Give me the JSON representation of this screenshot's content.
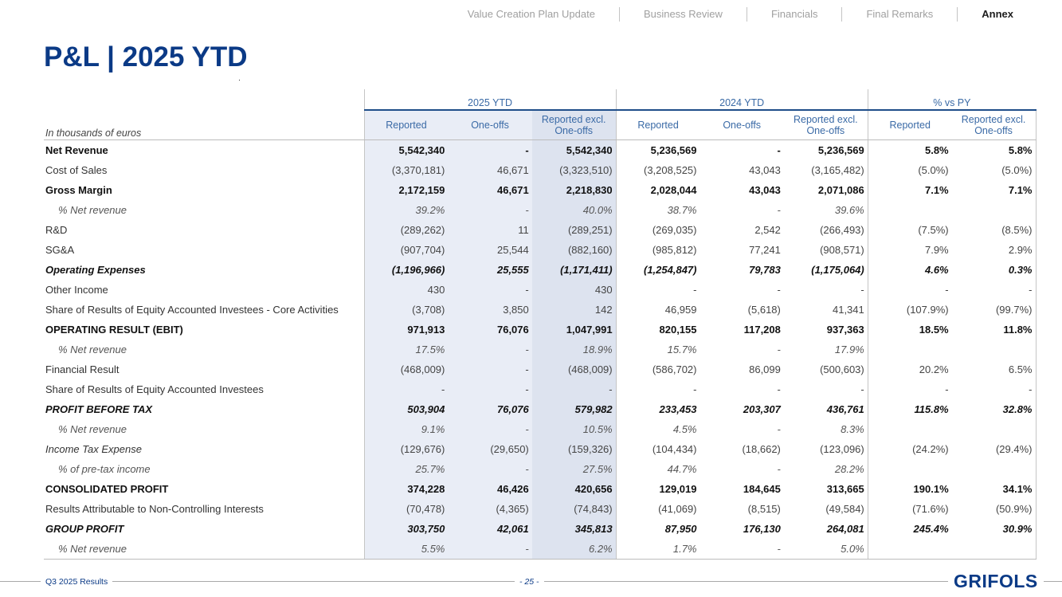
{
  "nav": {
    "items": [
      "Value Creation Plan Update",
      "Business Review",
      "Financials",
      "Final Remarks",
      "Annex"
    ],
    "active_index": 4
  },
  "page_title": "P&L | 2025 YTD",
  "table": {
    "unit_note": "In thousands of euros",
    "groups": [
      "2025 YTD",
      "2024 YTD",
      "% vs PY"
    ],
    "subheaders": {
      "reported": "Reported",
      "one_offs": "One-offs",
      "excl_line1": "Reported excl.",
      "excl_line2": "One-offs"
    },
    "rows": [
      {
        "label": "Net Revenue",
        "style": "bold",
        "values": [
          "5,542,340",
          "-",
          "5,542,340",
          "5,236,569",
          "-",
          "5,236,569",
          "5.8%",
          "5.8%"
        ]
      },
      {
        "label": "Cost of Sales",
        "style": "normal",
        "values": [
          "(3,370,181)",
          "46,671",
          "(3,323,510)",
          "(3,208,525)",
          "43,043",
          "(3,165,482)",
          "(5.0%)",
          "(5.0%)"
        ]
      },
      {
        "label": "Gross Margin",
        "style": "bold",
        "values": [
          "2,172,159",
          "46,671",
          "2,218,830",
          "2,028,044",
          "43,043",
          "2,071,086",
          "7.1%",
          "7.1%"
        ]
      },
      {
        "label": "% Net revenue",
        "style": "pct",
        "values": [
          "39.2%",
          "-",
          "40.0%",
          "38.7%",
          "-",
          "39.6%",
          "",
          ""
        ]
      },
      {
        "label": "R&D",
        "style": "normal",
        "values": [
          "(289,262)",
          "11",
          "(289,251)",
          "(269,035)",
          "2,542",
          "(266,493)",
          "(7.5%)",
          "(8.5%)"
        ]
      },
      {
        "label": "SG&A",
        "style": "normal",
        "values": [
          "(907,704)",
          "25,544",
          "(882,160)",
          "(985,812)",
          "77,241",
          "(908,571)",
          "7.9%",
          "2.9%"
        ]
      },
      {
        "label": "Operating Expenses",
        "style": "bolditalic",
        "values": [
          "(1,196,966)",
          "25,555",
          "(1,171,411)",
          "(1,254,847)",
          "79,783",
          "(1,175,064)",
          "4.6%",
          "0.3%"
        ]
      },
      {
        "label": "Other Income",
        "style": "normal",
        "values": [
          "430",
          "-",
          "430",
          "-",
          "-",
          "-",
          "-",
          "-"
        ]
      },
      {
        "label": "Share of Results of Equity Accounted Investees - Core Activities",
        "style": "normal",
        "values": [
          "(3,708)",
          "3,850",
          "142",
          "46,959",
          "(5,618)",
          "41,341",
          "(107.9%)",
          "(99.7%)"
        ]
      },
      {
        "label": "OPERATING RESULT (EBIT)",
        "style": "bold",
        "values": [
          "971,913",
          "76,076",
          "1,047,991",
          "820,155",
          "117,208",
          "937,363",
          "18.5%",
          "11.8%"
        ]
      },
      {
        "label": "% Net revenue",
        "style": "pct",
        "values": [
          "17.5%",
          "-",
          "18.9%",
          "15.7%",
          "-",
          "17.9%",
          "",
          ""
        ]
      },
      {
        "label": "Financial Result",
        "style": "normal",
        "values": [
          "(468,009)",
          "-",
          "(468,009)",
          "(586,702)",
          "86,099",
          "(500,603)",
          "20.2%",
          "6.5%"
        ]
      },
      {
        "label": "Share of Results of Equity Accounted Investees",
        "style": "normal",
        "values": [
          "-",
          "-",
          "-",
          "-",
          "-",
          "-",
          "-",
          "-"
        ]
      },
      {
        "label": "PROFIT BEFORE TAX",
        "style": "bolditalic",
        "values": [
          "503,904",
          "76,076",
          "579,982",
          "233,453",
          "203,307",
          "436,761",
          "115.8%",
          "32.8%"
        ]
      },
      {
        "label": "% Net revenue",
        "style": "pct",
        "values": [
          "9.1%",
          "-",
          "10.5%",
          "4.5%",
          "-",
          "8.3%",
          "",
          ""
        ]
      },
      {
        "label": "Income Tax Expense",
        "style": "ital",
        "values": [
          "(129,676)",
          "(29,650)",
          "(159,326)",
          "(104,434)",
          "(18,662)",
          "(123,096)",
          "(24.2%)",
          "(29.4%)"
        ]
      },
      {
        "label": "% of pre-tax income",
        "style": "pct",
        "values": [
          "25.7%",
          "-",
          "27.5%",
          "44.7%",
          "-",
          "28.2%",
          "",
          ""
        ]
      },
      {
        "label": "CONSOLIDATED PROFIT",
        "style": "bold",
        "values": [
          "374,228",
          "46,426",
          "420,656",
          "129,019",
          "184,645",
          "313,665",
          "190.1%",
          "34.1%"
        ]
      },
      {
        "label": "Results Attributable to Non-Controlling Interests",
        "style": "normal",
        "values": [
          "(70,478)",
          "(4,365)",
          "(74,843)",
          "(41,069)",
          "(8,515)",
          "(49,584)",
          "(71.6%)",
          "(50.9%)"
        ]
      },
      {
        "label": "GROUP PROFIT",
        "style": "bolditalic",
        "values": [
          "303,750",
          "42,061",
          "345,813",
          "87,950",
          "176,130",
          "264,081",
          "245.4%",
          "30.9%"
        ]
      },
      {
        "label": "% Net revenue",
        "style": "pct",
        "values": [
          "5.5%",
          "-",
          "6.2%",
          "1.7%",
          "-",
          "5.0%",
          "",
          ""
        ]
      }
    ]
  },
  "footer": {
    "left_label": "Q3 2025 Results",
    "page_number": "- 25 -",
    "logo_text": "GRIFOLS"
  },
  "colors": {
    "title_blue": "#0b3a86",
    "header_blue": "#3a6aa6",
    "shade_2025": "#e9edf6",
    "shade_2025_excl": "#dde3ef"
  }
}
